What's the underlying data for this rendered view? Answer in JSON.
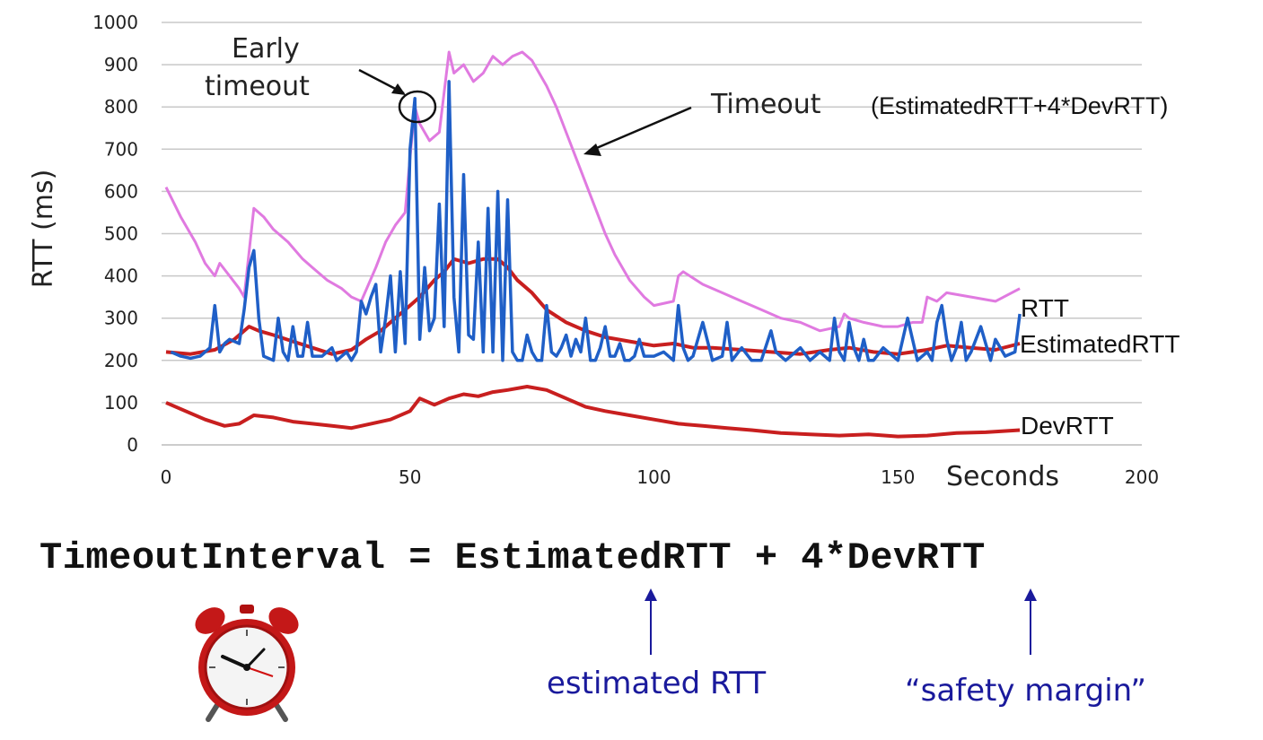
{
  "chart_data": {
    "type": "line",
    "xlabel": "Seconds",
    "ylabel": "RTT (ms)",
    "xlim": [
      0,
      200
    ],
    "ylim": [
      0,
      1000
    ],
    "x_ticks": [
      0,
      50,
      100,
      150,
      200
    ],
    "y_ticks": [
      0,
      100,
      200,
      300,
      400,
      500,
      600,
      700,
      800,
      900,
      1000
    ],
    "grid": "horizontal",
    "colors": {
      "RTT": "#1f5fc7",
      "EstimatedRTT": "#c81f1f",
      "DevRTT": "#c81f1f",
      "Timeout": "#e07ae0"
    },
    "series": [
      {
        "name": "RTT",
        "x": [
          1,
          3,
          5,
          7,
          9,
          10,
          11,
          12,
          13,
          15,
          16,
          17,
          18,
          19,
          20,
          22,
          23,
          24,
          25,
          26,
          27,
          28,
          29,
          30,
          32,
          34,
          35,
          37,
          38,
          39,
          40,
          41,
          42,
          43,
          44,
          45,
          46,
          47,
          48,
          49,
          50,
          51,
          52,
          53,
          54,
          55,
          56,
          57,
          58,
          59,
          60,
          61,
          62,
          63,
          64,
          65,
          66,
          67,
          68,
          69,
          70,
          71,
          72,
          73,
          74,
          75,
          76,
          77,
          78,
          79,
          80,
          81,
          82,
          83,
          84,
          85,
          86,
          87,
          88,
          89,
          90,
          91,
          92,
          93,
          94,
          95,
          96,
          97,
          98,
          100,
          102,
          104,
          105,
          106,
          107,
          108,
          110,
          112,
          114,
          115,
          116,
          118,
          120,
          122,
          124,
          125,
          127,
          130,
          132,
          134,
          136,
          137,
          138,
          139,
          140,
          141,
          142,
          143,
          144,
          145,
          147,
          150,
          152,
          154,
          155,
          156,
          157,
          158,
          159,
          160,
          161,
          162,
          163,
          164,
          165,
          167,
          169,
          170,
          172,
          174,
          175
        ],
        "y": [
          220,
          210,
          205,
          210,
          230,
          330,
          220,
          240,
          250,
          240,
          320,
          420,
          460,
          300,
          210,
          200,
          300,
          220,
          200,
          280,
          210,
          210,
          290,
          210,
          210,
          230,
          200,
          220,
          200,
          220,
          340,
          310,
          350,
          380,
          220,
          300,
          400,
          220,
          410,
          240,
          700,
          820,
          250,
          420,
          270,
          300,
          570,
          280,
          860,
          350,
          220,
          640,
          260,
          250,
          480,
          220,
          560,
          220,
          600,
          200,
          580,
          220,
          200,
          200,
          260,
          220,
          200,
          200,
          330,
          220,
          210,
          230,
          260,
          210,
          250,
          220,
          300,
          200,
          200,
          230,
          280,
          210,
          210,
          240,
          200,
          200,
          210,
          250,
          210,
          210,
          220,
          200,
          330,
          230,
          200,
          210,
          290,
          200,
          210,
          290,
          200,
          230,
          200,
          200,
          270,
          220,
          200,
          230,
          200,
          220,
          200,
          300,
          220,
          200,
          290,
          230,
          200,
          250,
          200,
          200,
          230,
          200,
          300,
          200,
          210,
          220,
          200,
          290,
          330,
          250,
          200,
          230,
          290,
          200,
          220,
          280,
          200,
          250,
          210,
          220,
          310
        ],
        "label": "RTT"
      },
      {
        "name": "EstimatedRTT",
        "x": [
          0,
          5,
          10,
          14,
          17,
          19,
          22,
          26,
          30,
          34,
          38,
          41,
          44,
          47,
          50,
          52,
          55,
          57,
          59,
          62,
          65,
          68,
          70,
          72,
          75,
          78,
          82,
          86,
          90,
          95,
          100,
          104,
          108,
          112,
          118,
          124,
          130,
          136,
          140,
          145,
          150,
          156,
          160,
          165,
          170,
          175
        ],
        "y": [
          220,
          215,
          225,
          250,
          280,
          270,
          260,
          245,
          230,
          215,
          225,
          250,
          270,
          300,
          330,
          350,
          390,
          410,
          440,
          430,
          440,
          440,
          420,
          390,
          360,
          320,
          290,
          270,
          255,
          245,
          235,
          240,
          230,
          230,
          225,
          220,
          215,
          225,
          230,
          220,
          215,
          225,
          235,
          230,
          225,
          240
        ],
        "label": "EstimatedRTT"
      },
      {
        "name": "DevRTT",
        "x": [
          0,
          4,
          8,
          12,
          15,
          18,
          22,
          26,
          30,
          34,
          38,
          42,
          46,
          50,
          52,
          55,
          58,
          61,
          64,
          67,
          70,
          74,
          78,
          82,
          86,
          90,
          95,
          100,
          105,
          110,
          115,
          120,
          126,
          132,
          138,
          144,
          150,
          156,
          162,
          168,
          175
        ],
        "y": [
          100,
          80,
          60,
          45,
          50,
          70,
          65,
          55,
          50,
          45,
          40,
          50,
          60,
          80,
          110,
          95,
          110,
          120,
          115,
          125,
          130,
          138,
          130,
          110,
          90,
          80,
          70,
          60,
          50,
          45,
          40,
          35,
          28,
          25,
          22,
          25,
          20,
          22,
          28,
          30,
          35
        ],
        "label": "DevRTT"
      },
      {
        "name": "Timeout",
        "x": [
          0,
          3,
          6,
          8,
          10,
          11,
          13,
          15,
          16,
          18,
          20,
          22,
          25,
          28,
          30,
          33,
          36,
          38,
          40,
          43,
          45,
          47,
          49,
          50,
          51,
          52,
          54,
          56,
          58,
          59,
          61,
          63,
          65,
          67,
          69,
          71,
          73,
          75,
          78,
          80,
          82,
          85,
          88,
          90,
          92,
          95,
          98,
          100,
          104,
          105,
          106,
          110,
          114,
          118,
          122,
          126,
          130,
          134,
          138,
          139,
          140,
          143,
          147,
          150,
          153,
          155,
          156,
          158,
          160,
          165,
          170,
          175
        ],
        "y": [
          610,
          540,
          480,
          430,
          400,
          430,
          400,
          370,
          350,
          560,
          540,
          510,
          480,
          440,
          420,
          390,
          370,
          350,
          340,
          420,
          480,
          520,
          550,
          680,
          800,
          760,
          720,
          740,
          930,
          880,
          900,
          860,
          880,
          920,
          900,
          920,
          930,
          910,
          850,
          800,
          740,
          650,
          560,
          500,
          450,
          390,
          350,
          330,
          340,
          400,
          410,
          380,
          360,
          340,
          320,
          300,
          290,
          270,
          280,
          310,
          300,
          290,
          280,
          280,
          290,
          290,
          350,
          340,
          360,
          350,
          340,
          370
        ],
        "label": "Timeout"
      }
    ],
    "annotations": {
      "early_timeout": [
        "Early",
        "timeout"
      ],
      "timeout_label": "Timeout",
      "timeout_formula": "(EstimatedRTT+4*DevRTT)"
    }
  },
  "formula": "TimeoutInterval = EstimatedRTT + 4*DevRTT",
  "notes": {
    "estimated": "estimated RTT",
    "safety": "“safety margin”"
  },
  "icons": {
    "clock": "alarm-clock-icon"
  }
}
